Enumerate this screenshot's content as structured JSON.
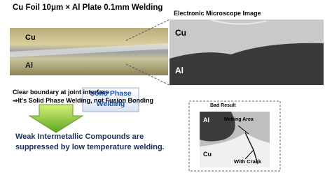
{
  "header": {
    "title": "Cu Foil 10μm × Al Plate 0.1mm Welding"
  },
  "photo": {
    "labels": [
      "Cu",
      "Al"
    ]
  },
  "microscope": {
    "title": "Electronic Microscope Image",
    "labels": [
      "Cu",
      "Al"
    ]
  },
  "notes": [
    "Clear boundary at joint interface",
    "⇒It's Solid Phase Welding, not Fusion Bonding"
  ],
  "callout": [
    "Solid Phase",
    "Welding"
  ],
  "conclusion": [
    "Weak Intermetallic Compounds are",
    "suppressed by low temperature welding."
  ],
  "bad_result": {
    "title": "Bad Result",
    "labels": [
      "Al",
      "Melting Area",
      "Cu",
      "With Crack"
    ]
  }
}
